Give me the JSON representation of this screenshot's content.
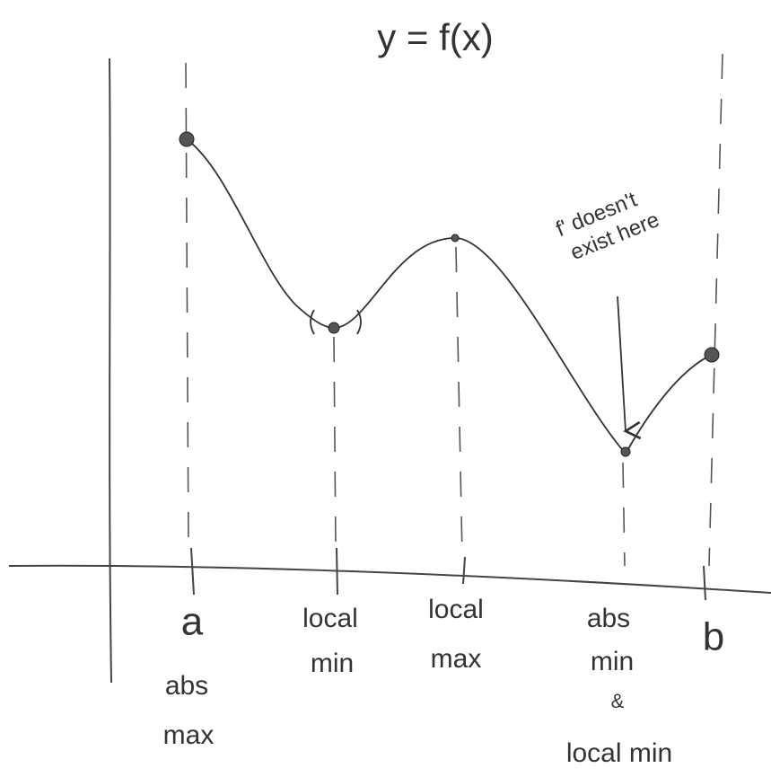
{
  "title": "y = f(x)",
  "annotation": [
    "f' doesn't",
    "exist here"
  ],
  "markers": [
    {
      "name": "a",
      "note": [
        "abs",
        "max"
      ]
    },
    {
      "note": [
        "local",
        "min"
      ]
    },
    {
      "note": [
        "local",
        "max"
      ]
    },
    {
      "note": [
        "abs",
        "min",
        "&",
        "local min"
      ]
    },
    {
      "name": "b"
    }
  ]
}
